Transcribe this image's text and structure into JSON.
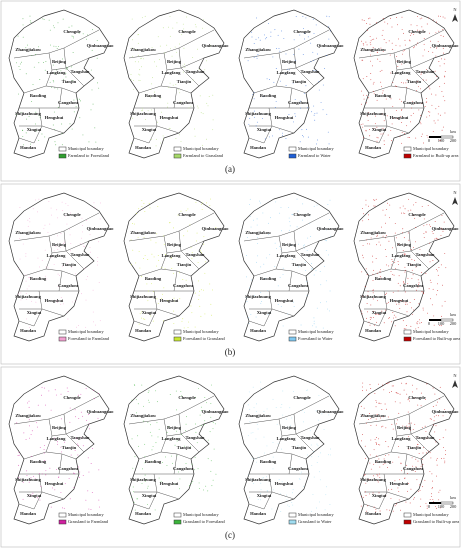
{
  "panels": [
    {
      "label": "(a)",
      "maps": [
        {
          "legend": [
            "Municipal boundary",
            "Farmland to Forestland"
          ],
          "color": "#2e9e2e"
        },
        {
          "legend": [
            "Municipal boundary",
            "Farmland to Grassland"
          ],
          "color": "#a6d96a"
        },
        {
          "legend": [
            "Municipal boundary",
            "Farmland to Water"
          ],
          "color": "#1f5fd6"
        },
        {
          "legend": [
            "Municipal boundary",
            "Farmland to Built-up area"
          ],
          "color": "#c00000"
        }
      ]
    },
    {
      "label": "(b)",
      "maps": [
        {
          "legend": [
            "Municipal boundary",
            "Forestland to Farmland"
          ],
          "color": "#f2a0d0"
        },
        {
          "legend": [
            "Municipal boundary",
            "Forestland to Grassland"
          ],
          "color": "#c8e632"
        },
        {
          "legend": [
            "Municipal boundary",
            "Forestland to Water"
          ],
          "color": "#7fc8f0"
        },
        {
          "legend": [
            "Municipal boundary",
            "Forestland to Built-up area"
          ],
          "color": "#c00000"
        }
      ]
    },
    {
      "label": "(c)",
      "maps": [
        {
          "legend": [
            "Municipal boundary",
            "Grassland to Farmland"
          ],
          "color": "#d020a0"
        },
        {
          "legend": [
            "Municipal boundary",
            "Grassland to Forestland"
          ],
          "color": "#3cb43c"
        },
        {
          "legend": [
            "Municipal boundary",
            "Grassland to Water"
          ],
          "color": "#a0dcf0"
        },
        {
          "legend": [
            "Municipal boundary",
            "Grassland to Built-up area"
          ],
          "color": "#c00000"
        }
      ]
    }
  ],
  "cities": [
    "Chengde",
    "Zhangjiakou",
    "Qinhuangdao",
    "Beijing",
    "Langfang",
    "Tangshan",
    "Tianjin",
    "Baoding",
    "Cangzhou",
    "Shijiazhuang",
    "Hengshui",
    "Xingtai",
    "Handan"
  ],
  "north": "N",
  "scale": {
    "ticks": [
      "0",
      "100",
      "200"
    ],
    "unit": "km"
  }
}
